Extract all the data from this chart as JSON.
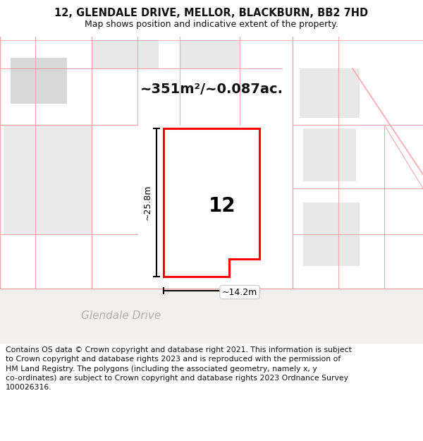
{
  "title_line1": "12, GLENDALE DRIVE, MELLOR, BLACKBURN, BB2 7HD",
  "title_line2": "Map shows position and indicative extent of the property.",
  "area_label": "~351m²/~0.087ac.",
  "number_label": "12",
  "dim_height": "~25.8m",
  "dim_width": "~14.2m",
  "street_label": "Glendale Drive",
  "footer_text": "Contains OS data © Crown copyright and database right 2021. This information is subject\nto Crown copyright and database rights 2023 and is reproduced with the permission of\nHM Land Registry. The polygons (including the associated geometry, namely x, y\nco-ordinates) are subject to Crown copyright and database rights 2023 Ordnance Survey\n100026316.",
  "bg_color": "#ffffff",
  "map_bg": "#ffffff",
  "red_color": "#ff0000",
  "pink_color": "#f5aaaa",
  "light_pink": "#fad4d4",
  "gray_fill": "#d8d8d8",
  "light_gray": "#e8e8e8",
  "road_color": "#f0eeec",
  "map_outer": "#f7f4f1"
}
